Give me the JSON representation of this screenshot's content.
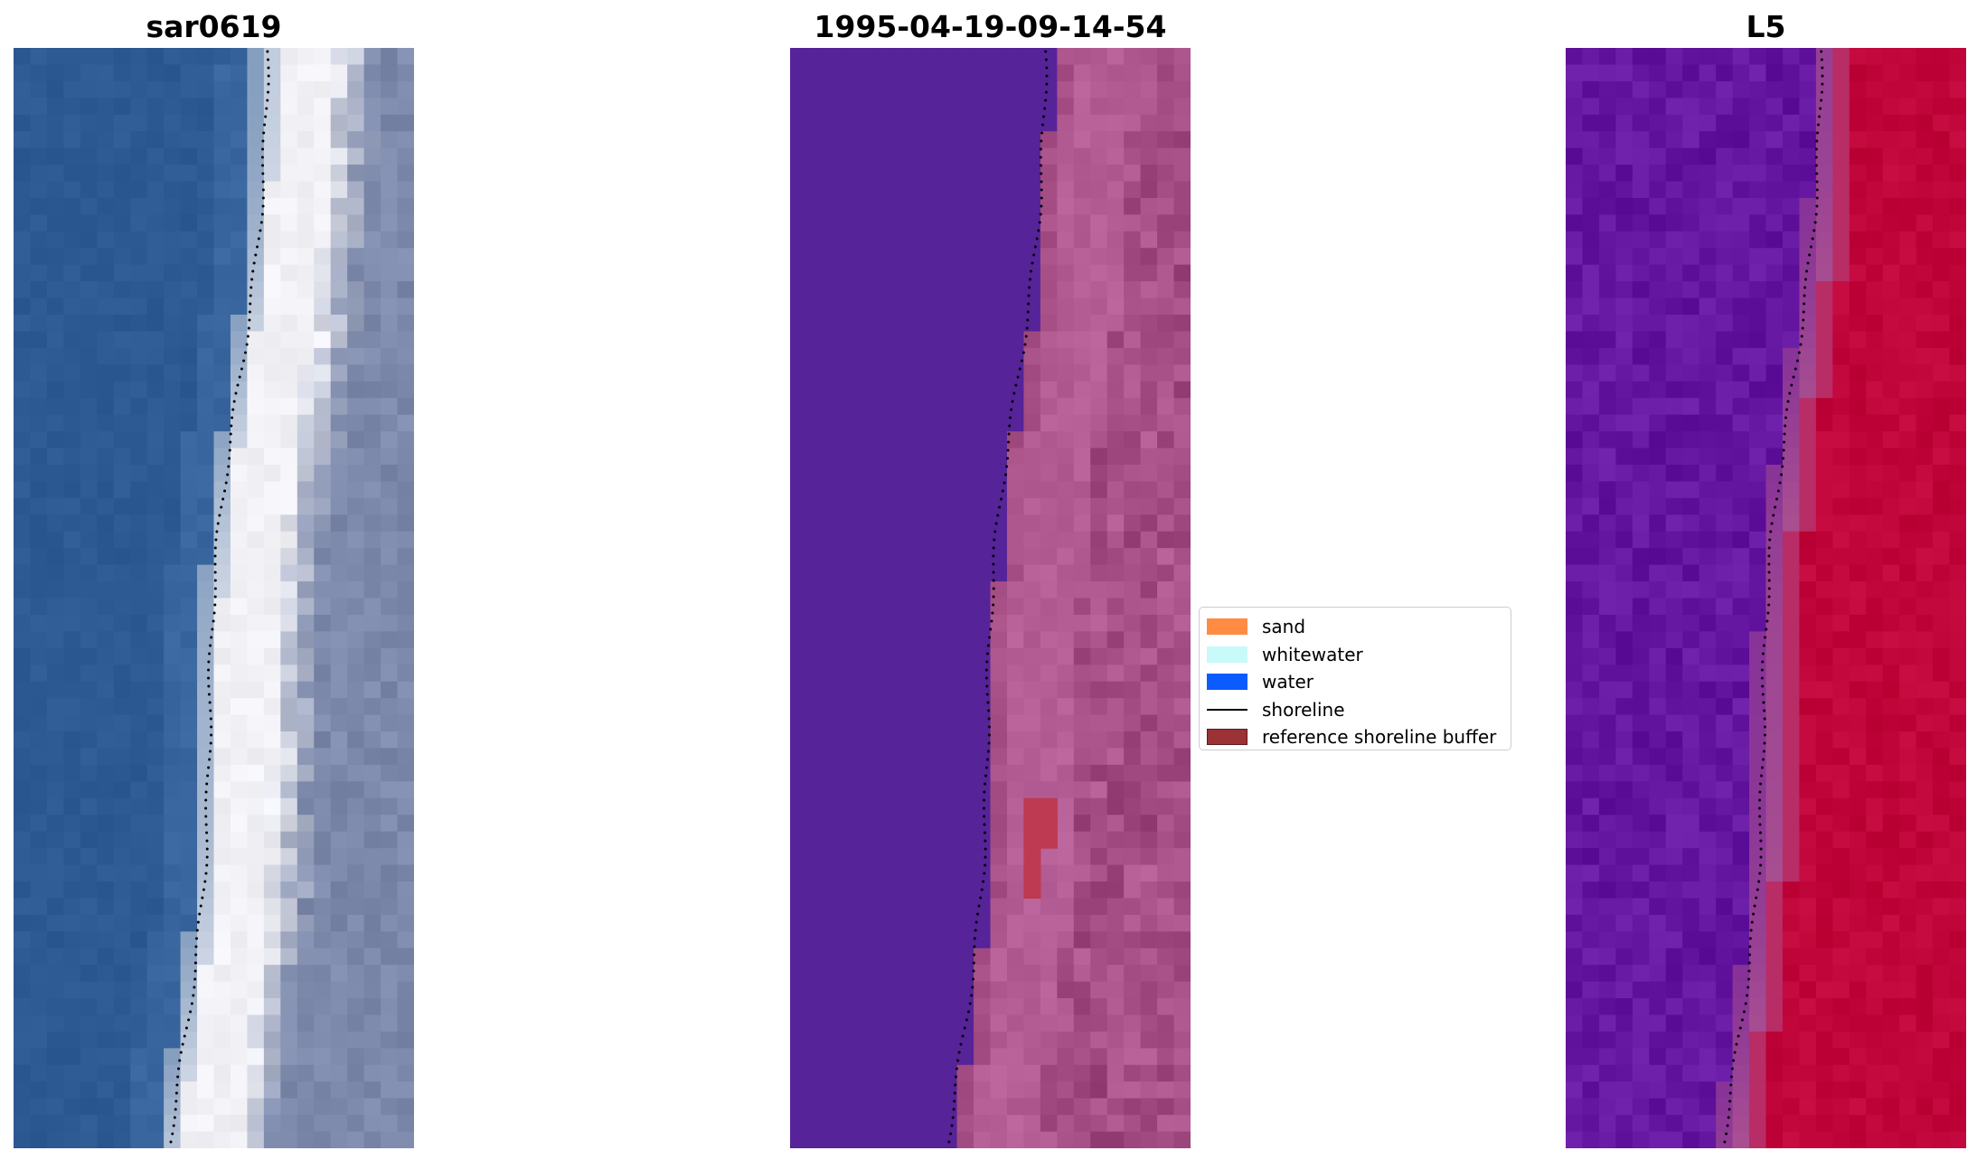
{
  "panels": [
    {
      "id": "rgb",
      "title": "sar0619"
    },
    {
      "id": "classified",
      "title": "1995-04-19-09-14-54"
    },
    {
      "id": "index",
      "title": "L5"
    }
  ],
  "legend": {
    "entries": [
      {
        "label": "sand",
        "kind": "patch",
        "color": "#ff8c42"
      },
      {
        "label": "whitewater",
        "kind": "patch",
        "color": "#c8fafa"
      },
      {
        "label": "water",
        "kind": "patch",
        "color": "#0a5cff"
      },
      {
        "label": "shoreline",
        "kind": "line",
        "color": "#000000"
      },
      {
        "label": "reference shoreline buffer",
        "kind": "patch",
        "color": "#9b3236"
      }
    ]
  },
  "colors": {
    "rgb_water": "#2d5a92",
    "rgb_surf": "#f2f2f6",
    "rgb_land": "#7c89aa",
    "class_water": "#562399",
    "class_sand": "#b45e95",
    "class_buffer": "#bd3a52",
    "index_low": "#6416a0",
    "index_mid": "#b0558f",
    "index_high": "#c0053a",
    "shoreline": "#000000"
  }
}
